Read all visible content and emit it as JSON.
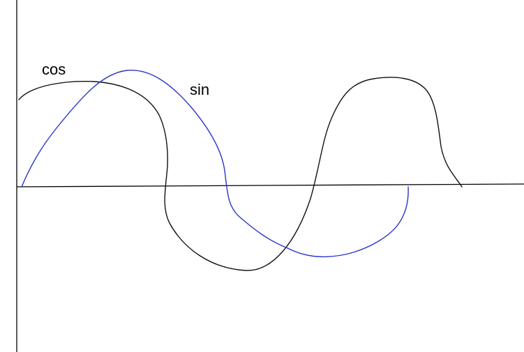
{
  "labels": {
    "cos": "cos",
    "sin": "sin"
  },
  "colors": {
    "background": "#ffffff",
    "axes": "#000000",
    "cos_curve": "#111111",
    "sin_curve": "#2a35cc"
  }
}
